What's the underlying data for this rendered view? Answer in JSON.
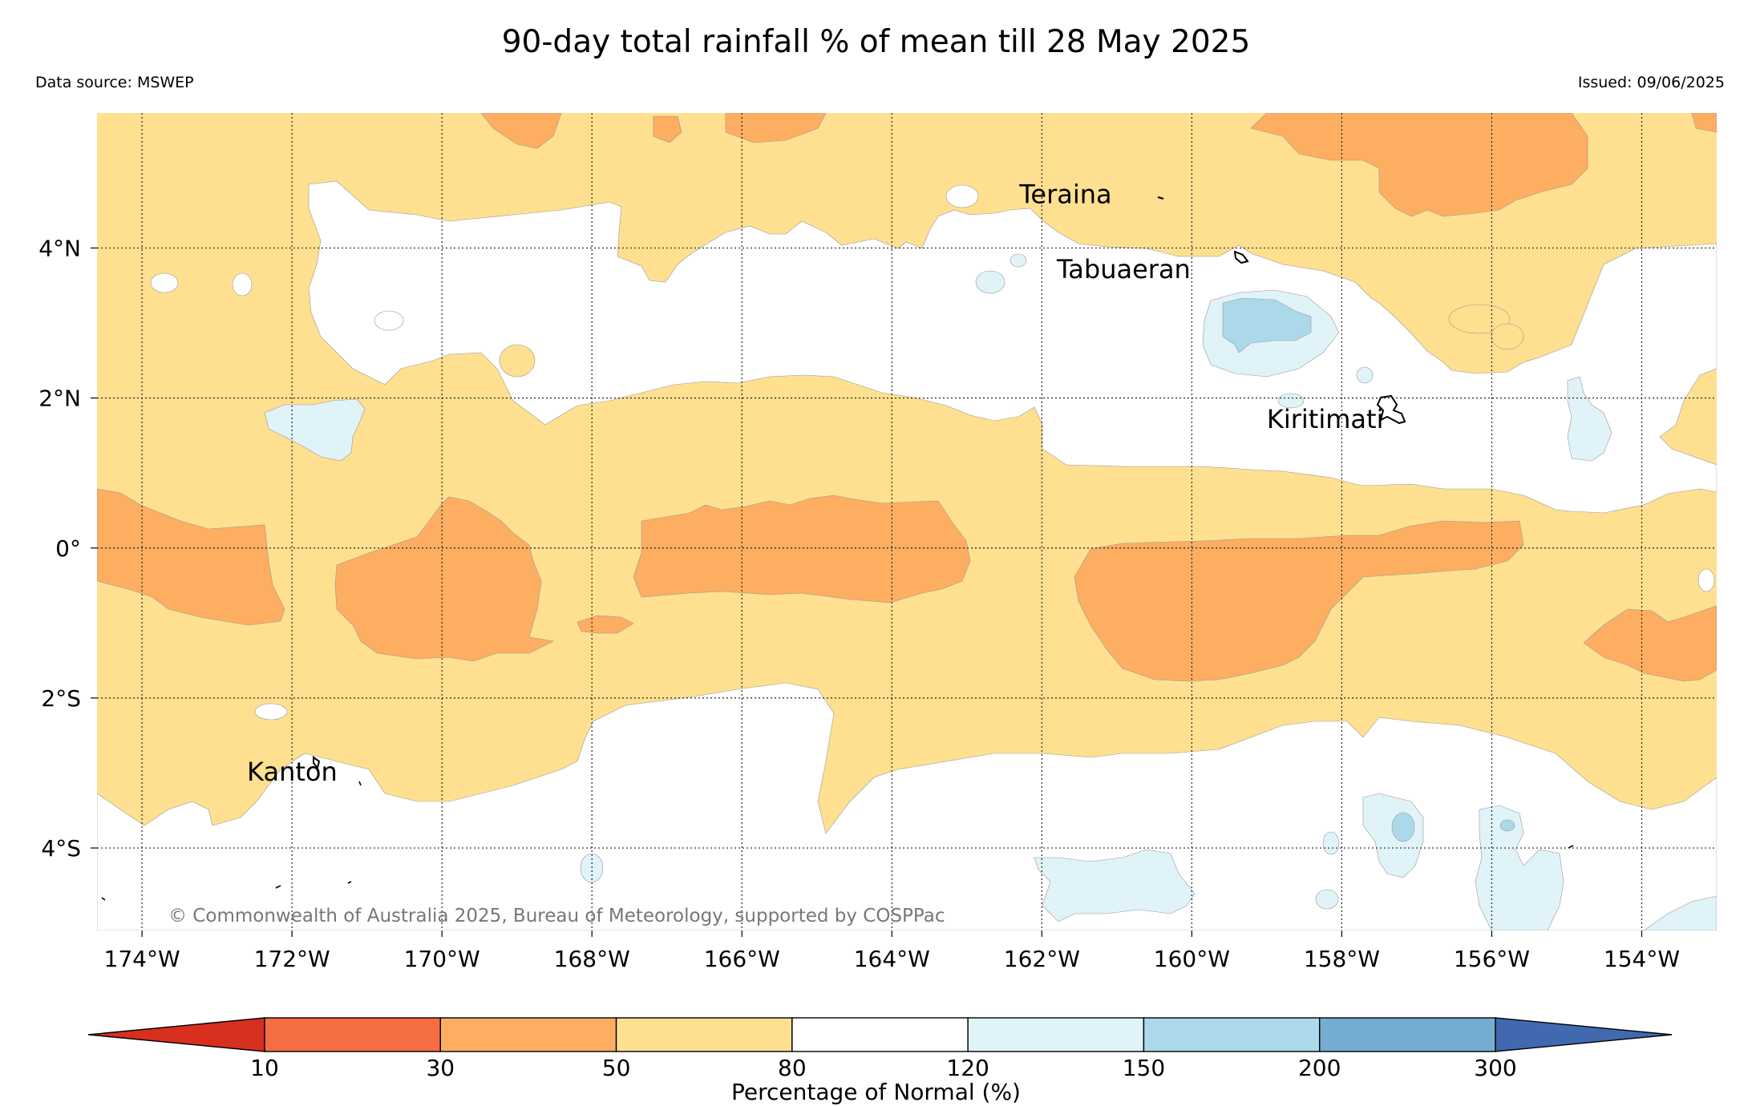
{
  "header": {
    "title": "90-day total rainfall % of mean till 28 May 2025",
    "data_source": "Data source: MSWEP",
    "issued": "Issued: 09/06/2025"
  },
  "map": {
    "lon_range": [
      -174.6,
      -153.0
    ],
    "lat_range": [
      -5.1,
      5.8
    ],
    "longitude_ticks": [
      {
        "value": -174,
        "label": "174°W"
      },
      {
        "value": -172,
        "label": "172°W"
      },
      {
        "value": -170,
        "label": "170°W"
      },
      {
        "value": -168,
        "label": "168°W"
      },
      {
        "value": -166,
        "label": "166°W"
      },
      {
        "value": -164,
        "label": "164°W"
      },
      {
        "value": -162,
        "label": "162°W"
      },
      {
        "value": -160,
        "label": "160°W"
      },
      {
        "value": -158,
        "label": "158°W"
      },
      {
        "value": -156,
        "label": "156°W"
      },
      {
        "value": -154,
        "label": "154°W"
      }
    ],
    "latitude_ticks": [
      {
        "value": 4,
        "label": "4°N"
      },
      {
        "value": 2,
        "label": "2°N"
      },
      {
        "value": 0,
        "label": "0°"
      },
      {
        "value": -2,
        "label": "2°S"
      },
      {
        "value": -4,
        "label": "4°S"
      }
    ],
    "gridlines": true,
    "places": [
      {
        "name": "Teraina",
        "lon": -162.3,
        "lat": 4.6
      },
      {
        "name": "Tabuaeran",
        "lon": -161.8,
        "lat": 3.6
      },
      {
        "name": "Kiritimati",
        "lon": -159.0,
        "lat": 1.6
      },
      {
        "name": "Kanton",
        "lon": -172.6,
        "lat": -3.1
      }
    ],
    "copyright": "© Commonwealth of Australia 2025, Bureau of Meteorology, supported by COSPPac"
  },
  "colorbar": {
    "label": "Percentage of Normal (%)",
    "tick_labels": [
      "10",
      "30",
      "50",
      "80",
      "120",
      "150",
      "200",
      "300"
    ],
    "below_color": "#d7301f",
    "above_color": "#4169b0",
    "colors": [
      "#f46d43",
      "#fdae61",
      "#fee090",
      "#ffffff",
      "#e0f3f8",
      "#abd9e9",
      "#74add1"
    ]
  }
}
